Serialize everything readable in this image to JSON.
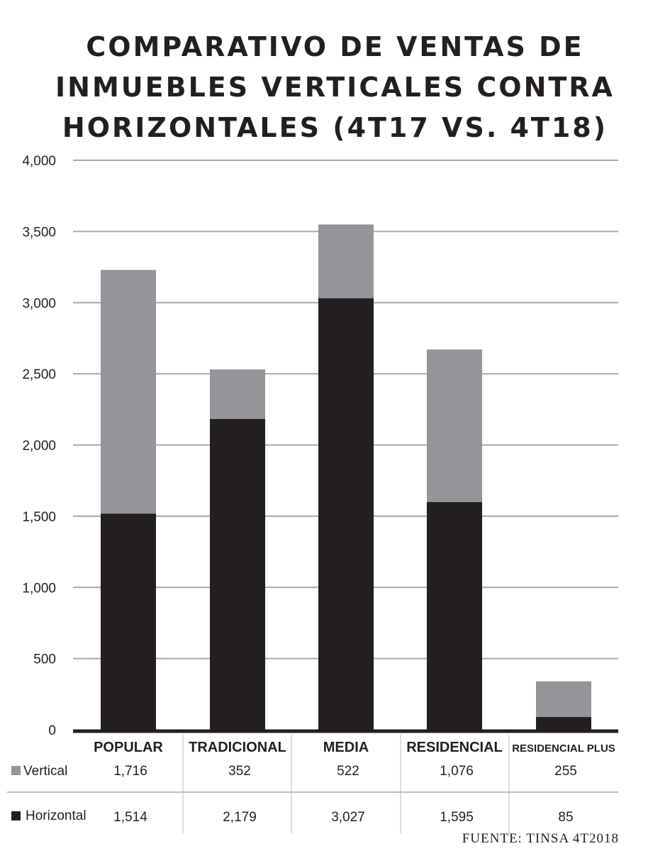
{
  "chart_data": {
    "type": "bar",
    "stacked": true,
    "title_lines": [
      "COMPARATIVO DE VENTAS DE",
      "INMUEBLES VERTICALES CONTRA",
      "HORIZONTALES (4T17 VS. 4T18)"
    ],
    "categories": [
      "POPULAR",
      "TRADICIONAL",
      "MEDIA",
      "RESIDENCIAL",
      "RESIDENCIAL PLUS"
    ],
    "series": [
      {
        "name": "Horizontal",
        "values": [
          1514,
          2179,
          3027,
          1595,
          85
        ],
        "labels": [
          "1,514",
          "2,179",
          "3,027",
          "1,595",
          "85"
        ],
        "color": "#231f20"
      },
      {
        "name": "Vertical",
        "values": [
          1716,
          352,
          522,
          1076,
          255
        ],
        "labels": [
          "1,716",
          "352",
          "522",
          "1,076",
          "255"
        ],
        "color": "#939598"
      }
    ],
    "ylim": [
      0,
      4000
    ],
    "yticks": [
      0,
      500,
      1000,
      1500,
      2000,
      2500,
      3000,
      3500,
      4000
    ],
    "ytick_labels": [
      "0",
      "500",
      "1,000",
      "1,500",
      "2,000",
      "2,500",
      "3,000",
      "3,500",
      "4,000"
    ],
    "grid": true,
    "legend": "table-below",
    "source": "FUENTE: TINSA 4T2018"
  }
}
